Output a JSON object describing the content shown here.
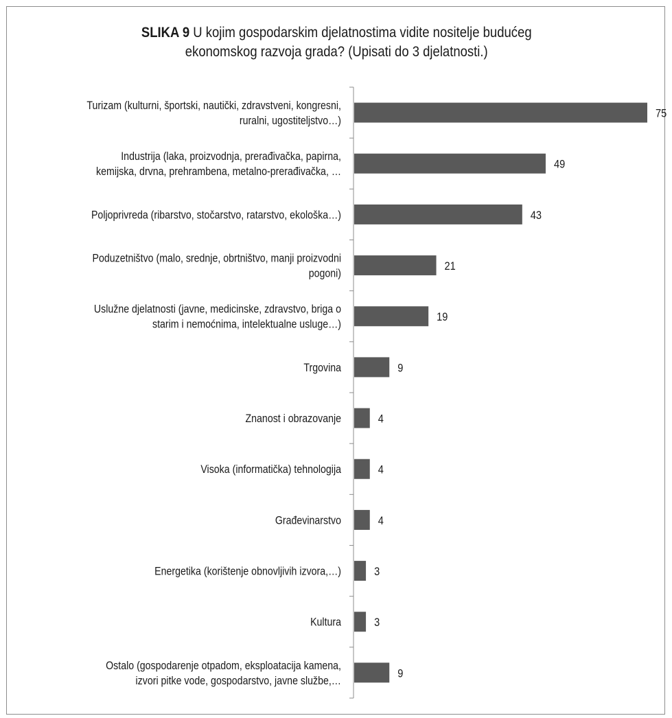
{
  "chart_data": {
    "type": "bar",
    "orientation": "horizontal",
    "title_bold": "SLIKA 9",
    "title": "U kojim gospodarskim djelatnostima vidite nositelje budućeg",
    "title_line2": "ekonomskog razvoja grada?  (Upisati do 3 djelatnosti.)",
    "categories": [
      [
        "Turizam (kulturni, športski, nautički, zdravstveni, kongresni,",
        "ruralni, ugostiteljstvo…)"
      ],
      [
        "Industrija (laka, proizvodnja, prerađivačka, papirna,",
        "kemijska, drvna, prehrambena, metalno-prerađivačka, …"
      ],
      [
        "Poljoprivreda (ribarstvo, stočarstvo, ratarstvo, ekološka…)"
      ],
      [
        "Poduzetništvo (malo, srednje, obrtništvo, manji proizvodni",
        "pogoni)"
      ],
      [
        "Uslužne djelatnosti (javne, medicinske, zdravstvo, briga o",
        "starim i nemoćnima, intelektualne usluge…)"
      ],
      [
        "Trgovina"
      ],
      [
        "Znanost i obrazovanje"
      ],
      [
        "Visoka (informatička) tehnologija"
      ],
      [
        "Građevinarstvo"
      ],
      [
        "Energetika (korištenje obnovljivih izvora,…)"
      ],
      [
        "Kultura"
      ],
      [
        "Ostalo (gospodarenje otpadom, eksploatacija kamena,",
        "izvori pitke vode, gospodarstvo, javne službe,…"
      ]
    ],
    "values": [
      75,
      49,
      43,
      21,
      19,
      9,
      4,
      4,
      4,
      3,
      3,
      9
    ],
    "data_labels": [
      "75",
      "49",
      "43",
      "21",
      "19",
      "9",
      "4",
      "4",
      "4",
      "3",
      "3",
      "9"
    ],
    "xlim": [
      0,
      75
    ],
    "grid": false,
    "legend": "none",
    "bar_color": "#595959",
    "axis_color": "#8c8c8c"
  }
}
